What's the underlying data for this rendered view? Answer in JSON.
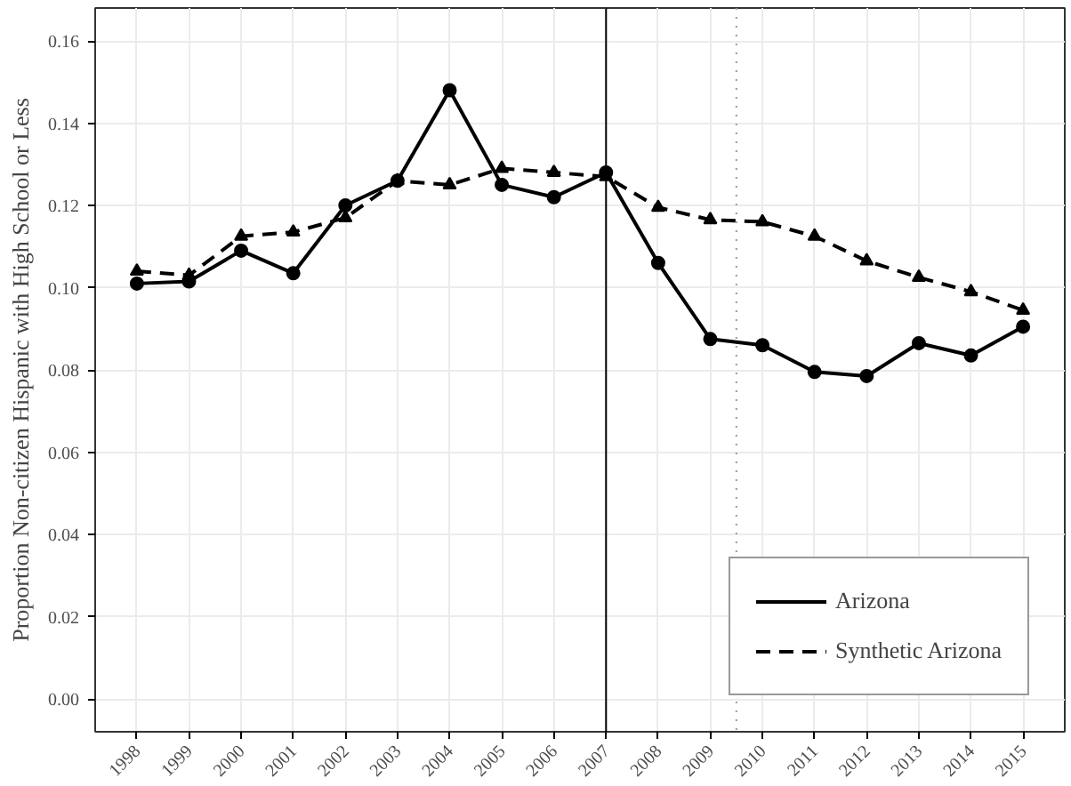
{
  "chart_data": {
    "type": "line",
    "ylabel": "Proportion Non-citizen Hispanic with High School or Less",
    "x": [
      1998,
      1999,
      2000,
      2001,
      2002,
      2003,
      2004,
      2005,
      2006,
      2007,
      2008,
      2009,
      2010,
      2011,
      2012,
      2013,
      2014,
      2015
    ],
    "series": [
      {
        "name": "Arizona",
        "color": "#000000",
        "marker": "circle",
        "line_style": "solid",
        "values": [
          0.101,
          0.1015,
          0.109,
          0.1035,
          0.12,
          0.126,
          0.148,
          0.125,
          0.122,
          0.128,
          0.106,
          0.0875,
          0.086,
          0.0795,
          0.0785,
          0.0865,
          0.0835,
          0.0905
        ]
      },
      {
        "name": "Synthetic Arizona",
        "color": "#000000",
        "marker": "triangle",
        "line_style": "dashed",
        "values": [
          0.104,
          0.103,
          0.1125,
          0.1135,
          0.117,
          0.126,
          0.125,
          0.129,
          0.128,
          0.127,
          0.1195,
          0.1165,
          0.116,
          0.1125,
          0.1065,
          0.1025,
          0.099,
          0.0945
        ]
      }
    ],
    "xlim": [
      1997.2,
      2015.8
    ],
    "xticks": [
      1998,
      1999,
      2000,
      2001,
      2002,
      2003,
      2004,
      2005,
      2006,
      2007,
      2008,
      2009,
      2010,
      2011,
      2012,
      2013,
      2014,
      2015
    ],
    "ylim": [
      -0.008,
      0.168
    ],
    "yticks": [
      {
        "value": 0,
        "label": "0.00"
      },
      {
        "value": 0.02,
        "label": "0.02"
      },
      {
        "value": 0.04,
        "label": "0.04"
      },
      {
        "value": 0.06,
        "label": "0.06"
      },
      {
        "value": 0.08,
        "label": "0.08"
      },
      {
        "value": 0.1,
        "label": "0.10"
      },
      {
        "value": 0.12,
        "label": "0.12"
      },
      {
        "value": 0.14,
        "label": "0.14"
      },
      {
        "value": 0.16,
        "label": "0.16"
      }
    ],
    "ref_lines": [
      {
        "axis": "x",
        "value": 2007,
        "line_style": "solid",
        "color": "#000000"
      },
      {
        "axis": "x",
        "value": 2009.5,
        "line_style": "dotted",
        "color": "#999999"
      }
    ],
    "grid": true,
    "legend": "bottom right"
  }
}
